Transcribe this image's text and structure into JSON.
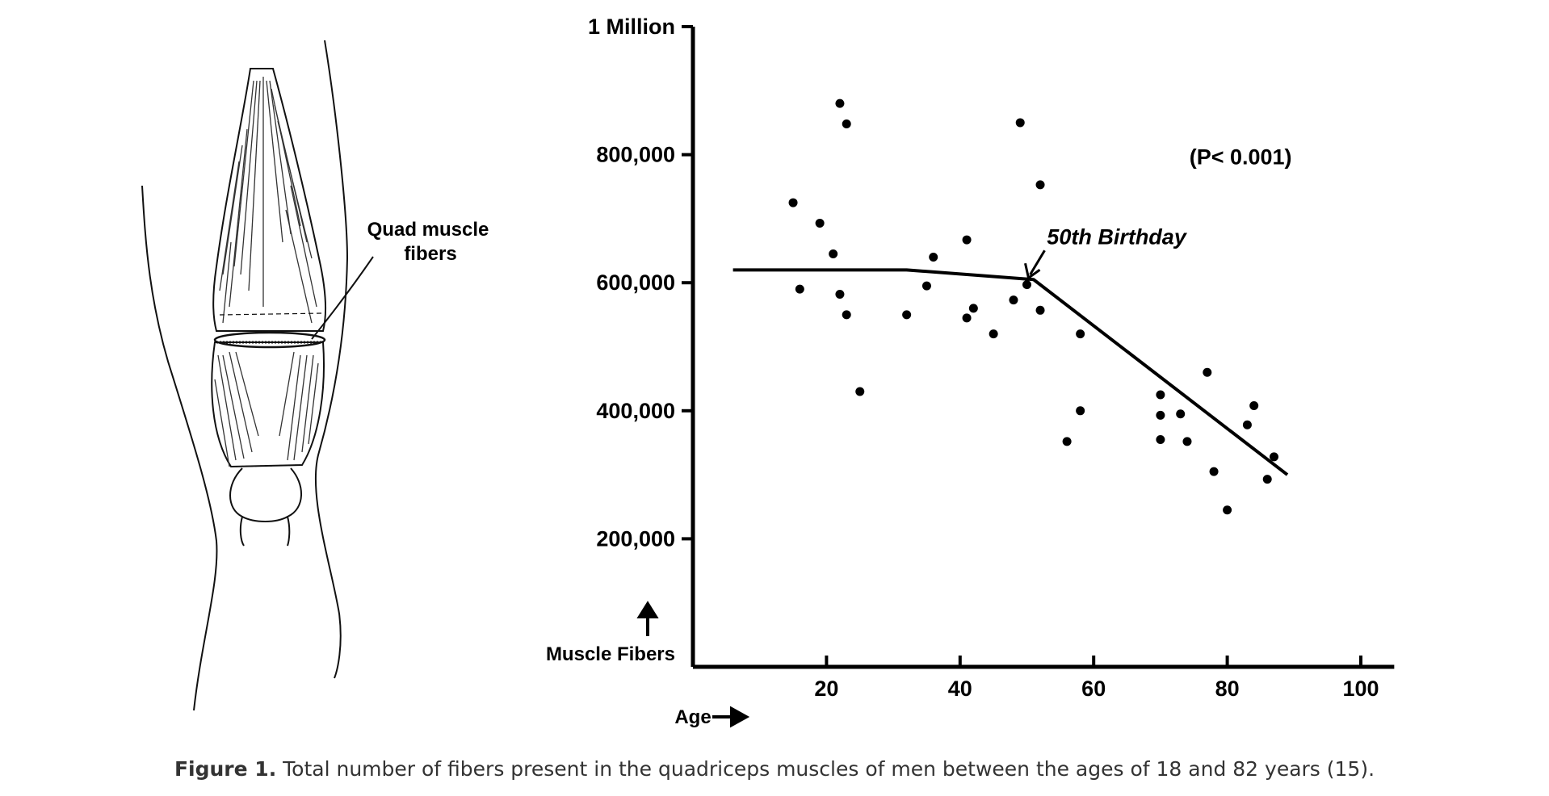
{
  "figure": {
    "caption_label": "Figure 1.",
    "caption_text": " Total number of fibers present in the quadriceps muscles of men between the ages of 18 and 82 years (15).",
    "illustration_label_line1": "Quad muscle",
    "illustration_label_line2": "fibers"
  },
  "chart_data": {
    "type": "scatter",
    "title": "",
    "xlabel": "Age",
    "ylabel": "Muscle Fibers",
    "xlim": [
      0,
      105
    ],
    "ylim": [
      0,
      1000000
    ],
    "x_ticks": [
      20,
      40,
      60,
      80,
      100
    ],
    "x_tick_labels": [
      "20",
      "40",
      "60",
      "80",
      "100"
    ],
    "y_ticks": [
      200000,
      400000,
      600000,
      800000,
      1000000
    ],
    "y_tick_labels": [
      "200,000",
      "400,000",
      "600,000",
      "800,000",
      "1 Million"
    ],
    "grid": false,
    "annotation_p": "(P< 0.001)",
    "annotation_birthday": "50th Birthday",
    "birthday_point": {
      "x": 50,
      "y": 605000
    },
    "points": [
      {
        "x": 15,
        "y": 725000
      },
      {
        "x": 16,
        "y": 590000
      },
      {
        "x": 19,
        "y": 693000
      },
      {
        "x": 21,
        "y": 645000
      },
      {
        "x": 22,
        "y": 880000
      },
      {
        "x": 22,
        "y": 582000
      },
      {
        "x": 23,
        "y": 848000
      },
      {
        "x": 23,
        "y": 550000
      },
      {
        "x": 25,
        "y": 430000
      },
      {
        "x": 32,
        "y": 550000
      },
      {
        "x": 35,
        "y": 595000
      },
      {
        "x": 36,
        "y": 640000
      },
      {
        "x": 41,
        "y": 667000
      },
      {
        "x": 41,
        "y": 545000
      },
      {
        "x": 42,
        "y": 560000
      },
      {
        "x": 45,
        "y": 520000
      },
      {
        "x": 48,
        "y": 573000
      },
      {
        "x": 49,
        "y": 850000
      },
      {
        "x": 50,
        "y": 597000
      },
      {
        "x": 52,
        "y": 753000
      },
      {
        "x": 52,
        "y": 557000
      },
      {
        "x": 56,
        "y": 352000
      },
      {
        "x": 58,
        "y": 400000
      },
      {
        "x": 58,
        "y": 520000
      },
      {
        "x": 70,
        "y": 425000
      },
      {
        "x": 70,
        "y": 393000
      },
      {
        "x": 70,
        "y": 355000
      },
      {
        "x": 73,
        "y": 395000
      },
      {
        "x": 74,
        "y": 352000
      },
      {
        "x": 77,
        "y": 460000
      },
      {
        "x": 78,
        "y": 305000
      },
      {
        "x": 80,
        "y": 245000
      },
      {
        "x": 83,
        "y": 378000
      },
      {
        "x": 84,
        "y": 408000
      },
      {
        "x": 86,
        "y": 293000
      },
      {
        "x": 87,
        "y": 328000
      }
    ],
    "trend_line": [
      {
        "x": 6,
        "y": 620000
      },
      {
        "x": 32,
        "y": 620000
      },
      {
        "x": 51,
        "y": 605000
      },
      {
        "x": 89,
        "y": 300000
      }
    ]
  }
}
